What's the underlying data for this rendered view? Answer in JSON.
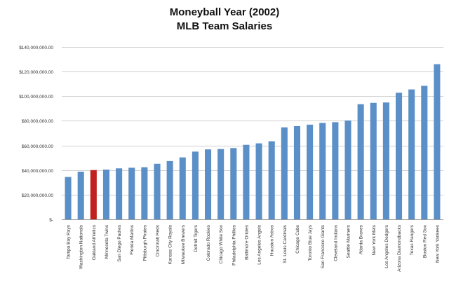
{
  "chart_data": {
    "type": "bar",
    "title": "Moneyball Year (2002)",
    "subtitle": "MLB Team Salaries",
    "xlabel": "",
    "ylabel": "",
    "ylim": [
      0,
      140000000
    ],
    "yticks": [
      0,
      20000000,
      40000000,
      60000000,
      80000000,
      100000000,
      120000000,
      140000000
    ],
    "ytick_labels": [
      "$-",
      "$20,000,000.00",
      "$40,000,000.00",
      "$60,000,000.00",
      "$80,000,000.00",
      "$100,000,000.00",
      "$120,000,000.00",
      "$140,000,000.00"
    ],
    "grid": true,
    "legend": "none",
    "bar_color": "#5b8fc7",
    "highlight_color": "#c0211f",
    "highlight_category": "Oakland Athletics",
    "categories": [
      "Tampa Bay Rays",
      "Washington Nationals",
      "Oakland Athletics",
      "Minnesota Twins",
      "San Diego Padres",
      "Florida Marlins",
      "Pittsburgh Pirates",
      "Cincinnati Reds",
      "Kansas City Royals",
      "Milwaukee Brewers",
      "Detroit Tigers",
      "Colorado Rockies",
      "Chicago White Sox",
      "Philadelphia Phillies",
      "Baltimore Orioles",
      "Los Angeles Angels",
      "Houston Astros",
      "St. Louis Cardinals",
      "Chicago Cubs",
      "Toronto Blue Jays",
      "San Francisco Giants",
      "Cleveland Indians",
      "Seattle Mariners",
      "Atlanta Braves",
      "New York Mets",
      "Los Angeles Dodgers",
      "Arizona Diamondbacks",
      "Texas Rangers",
      "Boston Red Sox",
      "New York Yankees"
    ],
    "values": [
      34400000,
      38700000,
      40000000,
      40400000,
      41400000,
      41900000,
      42300000,
      45100000,
      47300000,
      50300000,
      55000000,
      56800000,
      57100000,
      57900000,
      60500000,
      61700000,
      63400000,
      74700000,
      75700000,
      76900000,
      78300000,
      78900000,
      80300000,
      93500000,
      94600000,
      94900000,
      102800000,
      105500000,
      108400000,
      126000000
    ]
  }
}
